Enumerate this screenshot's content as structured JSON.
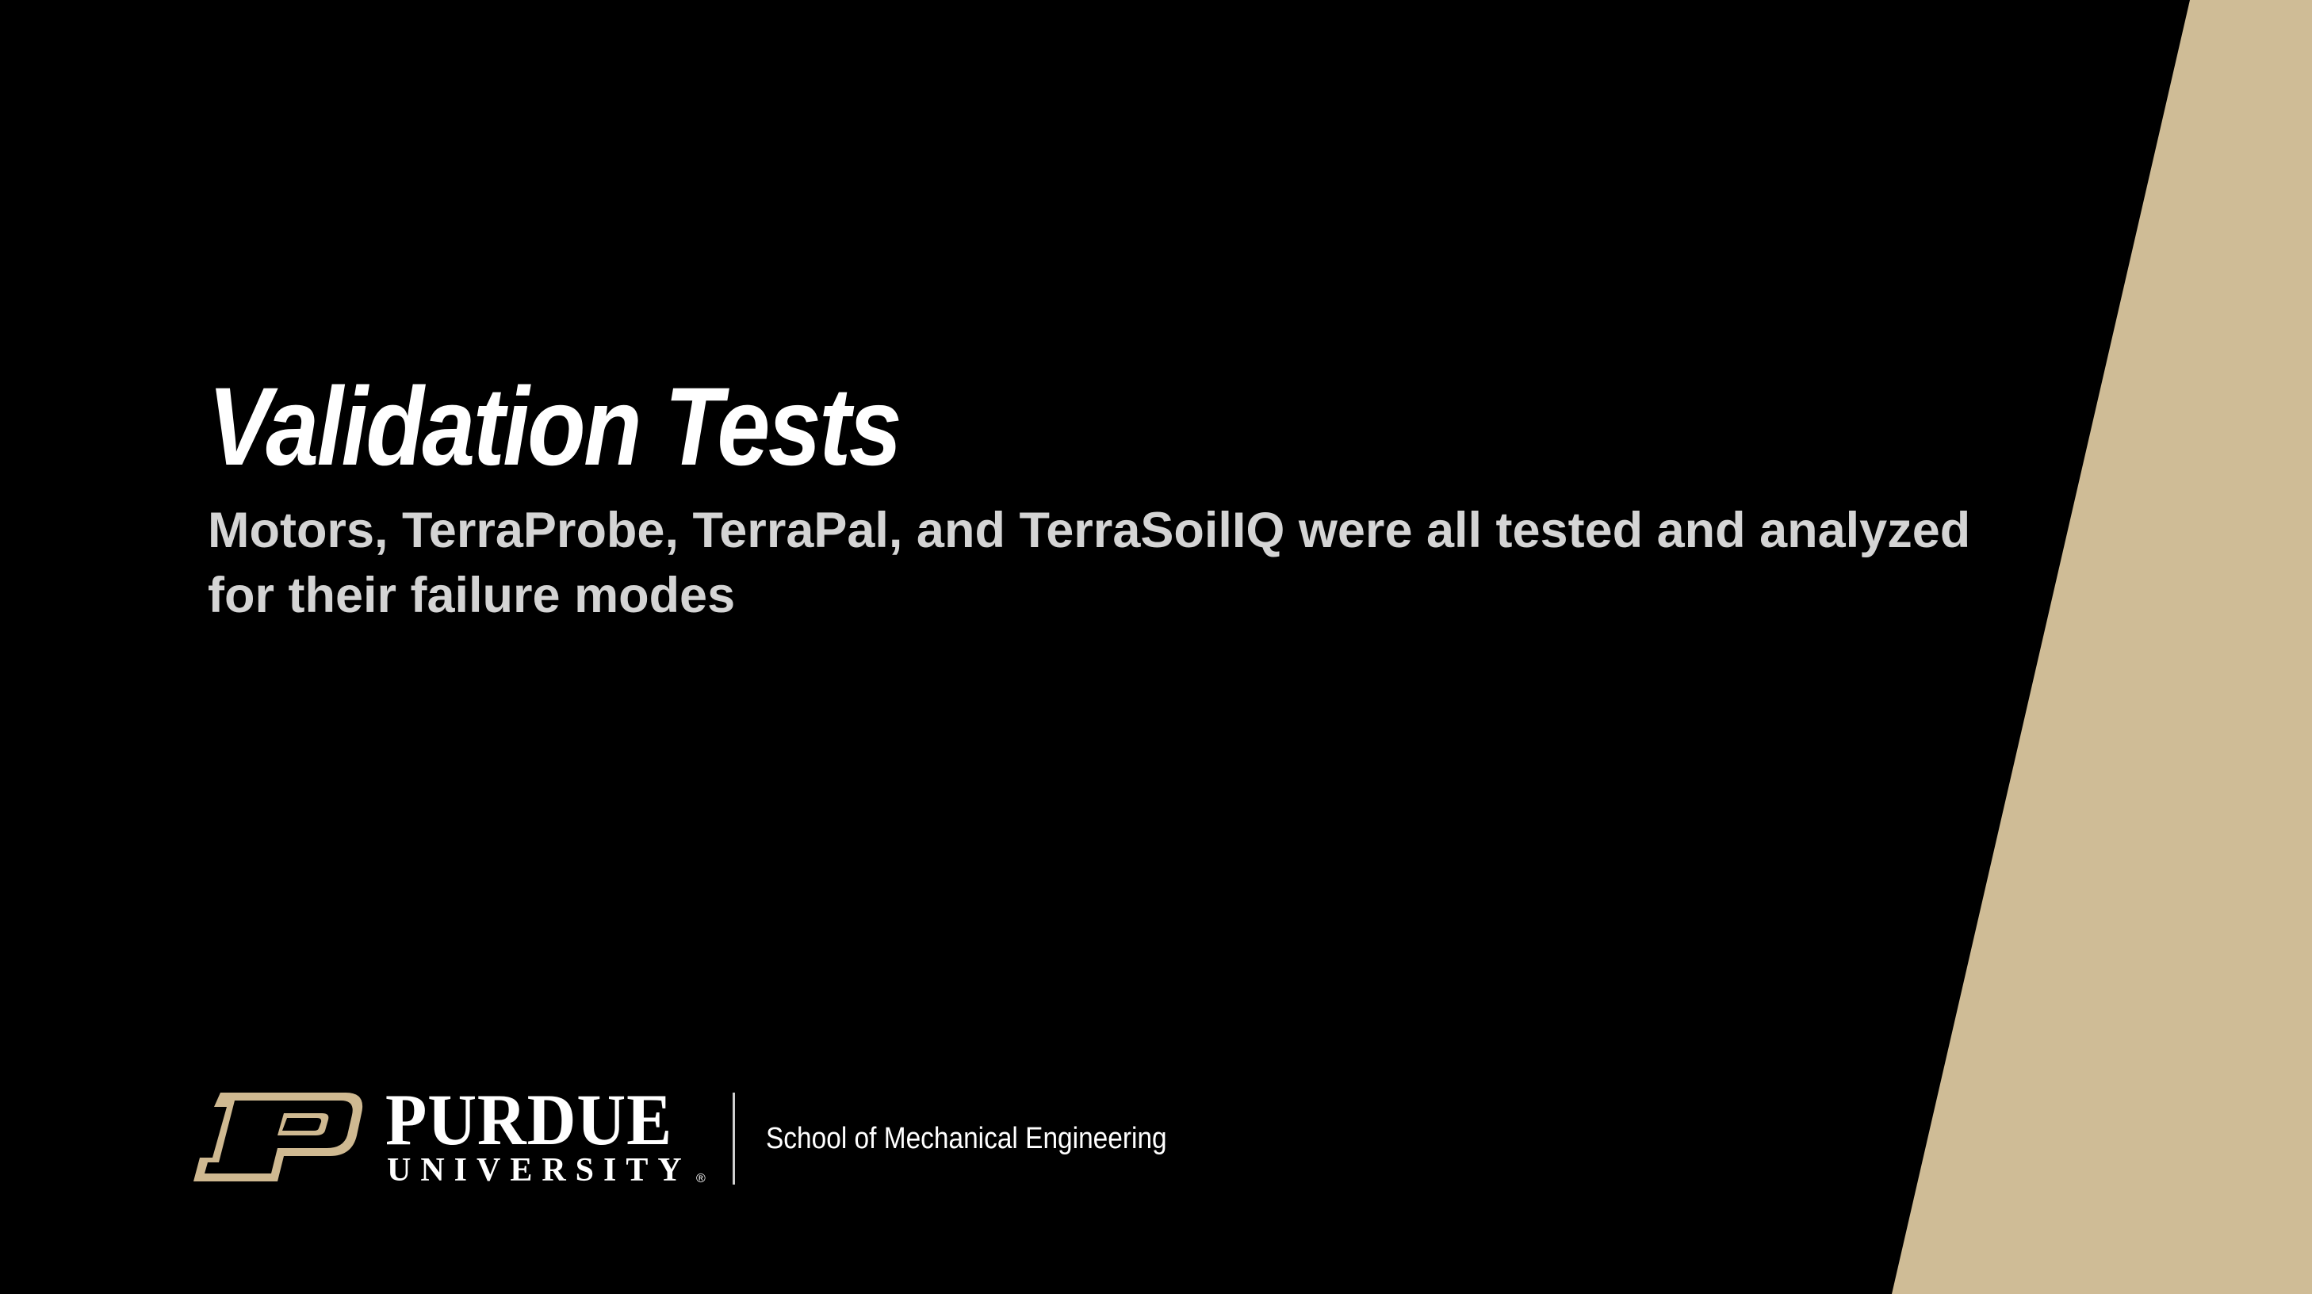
{
  "slide": {
    "title": "Validation Tests",
    "subtitle": "Motors, TerraProbe, TerraPal, and TerraSoilIQ were all tested and analyzed for their failure modes"
  },
  "footer": {
    "logo_word": "PURDUE",
    "logo_subword": "UNIVERSITY",
    "logo_mark_icon": "purdue-p-icon",
    "school_name": "School of Mechanical Engineering"
  },
  "colors": {
    "background": "#000000",
    "gold_accent": "#CFB991",
    "title_text": "#FFFFFF",
    "subtitle_text": "#D4D4D4"
  }
}
